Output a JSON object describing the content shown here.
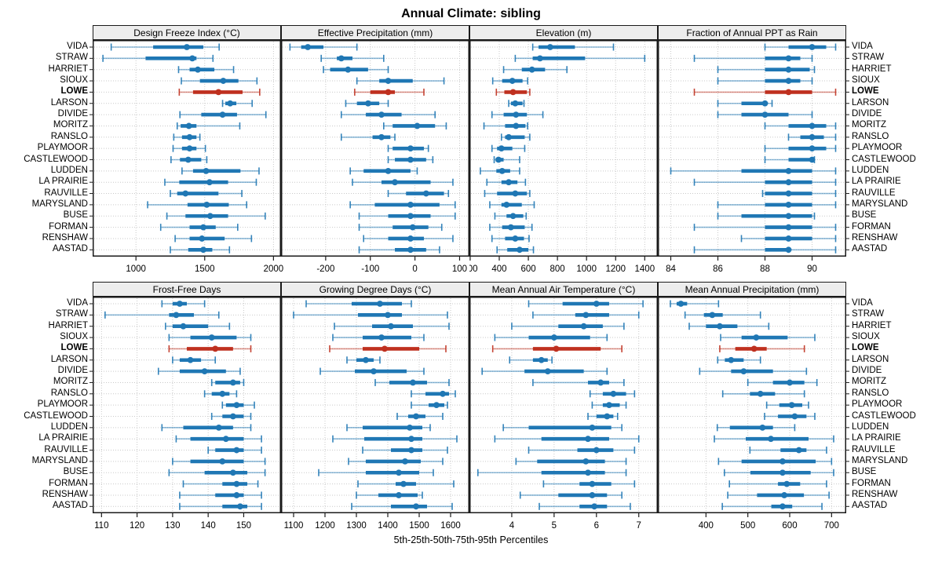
{
  "title": "Annual Climate: sibling",
  "footer": "5th-25th-50th-75th-95th Percentiles",
  "percentile_levels": [
    5,
    25,
    50,
    75,
    95
  ],
  "highlight_station": "LOWE",
  "colors": {
    "series": "#1f77b4",
    "highlight": "#bf301f",
    "grid": "#c9c9c9",
    "strip_bg": "#ededed",
    "border": "#1a1a1a"
  },
  "stations": [
    "VIDA",
    "STRAW",
    "HARRIET",
    "SIOUX",
    "LOWE",
    "LARSON",
    "DIVIDE",
    "MORITZ",
    "RANSLO",
    "PLAYMOOR",
    "CASTLEWOOD",
    "LUDDEN",
    "LA PRAIRIE",
    "RAUVILLE",
    "MARYSLAND",
    "BUSE",
    "FORMAN",
    "RENSHAW",
    "AASTAD"
  ],
  "chart_data": [
    {
      "type": "dotplot-percentiles",
      "title": "Design Freeze Index (°C)",
      "xlim": [
        685,
        2055
      ],
      "ticks": [
        1000,
        1500,
        2000
      ],
      "values": {
        "VIDA": [
          820,
          1125,
          1370,
          1490,
          1605
        ],
        "STRAW": [
          760,
          1070,
          1410,
          1440,
          1560
        ],
        "HARRIET": [
          1310,
          1390,
          1450,
          1570,
          1710
        ],
        "SIOUX": [
          1330,
          1465,
          1635,
          1745,
          1880
        ],
        "LOWE": [
          1315,
          1415,
          1600,
          1775,
          1900
        ],
        "LARSON": [
          1630,
          1650,
          1685,
          1730,
          1845
        ],
        "DIVIDE": [
          1320,
          1475,
          1630,
          1735,
          1945
        ],
        "MORITZ": [
          1300,
          1325,
          1385,
          1440,
          1755
        ],
        "RANSLO": [
          1275,
          1335,
          1390,
          1440,
          1465
        ],
        "PLAYMOOR": [
          1270,
          1335,
          1390,
          1440,
          1505
        ],
        "CASTLEWOOD": [
          1255,
          1320,
          1380,
          1475,
          1515
        ],
        "LUDDEN": [
          1335,
          1415,
          1510,
          1760,
          1895
        ],
        "LA PRAIRIE": [
          1210,
          1315,
          1535,
          1670,
          1875
        ],
        "RAUVILLE": [
          1250,
          1300,
          1360,
          1600,
          1770
        ],
        "MARYSLAND": [
          1085,
          1375,
          1515,
          1675,
          1805
        ],
        "BUSE": [
          1225,
          1360,
          1540,
          1670,
          1940
        ],
        "FORMAN": [
          1180,
          1390,
          1490,
          1580,
          1740
        ],
        "RENSHAW": [
          1285,
          1390,
          1480,
          1645,
          1840
        ],
        "AASTAD": [
          1250,
          1380,
          1490,
          1555,
          1680
        ]
      }
    },
    {
      "type": "dotplot-percentiles",
      "title": "Effective Precipitation (mm)",
      "xlim": [
        -300,
        122
      ],
      "ticks": [
        -200,
        -100,
        0,
        100
      ],
      "values": {
        "VIDA": [
          -280,
          -255,
          -240,
          -205,
          -130
        ],
        "STRAW": [
          -210,
          -175,
          -165,
          -140,
          -70
        ],
        "HARRIET": [
          -205,
          -190,
          -150,
          -105,
          -60
        ],
        "SIOUX": [
          -130,
          -80,
          -60,
          -5,
          65
        ],
        "LOWE": [
          -135,
          -100,
          -60,
          -45,
          20
        ],
        "LARSON": [
          -155,
          -130,
          -105,
          -80,
          -60
        ],
        "DIVIDE": [
          -165,
          -110,
          -75,
          -30,
          45
        ],
        "MORITZ": [
          -70,
          -50,
          5,
          45,
          70
        ],
        "RANSLO": [
          -165,
          -95,
          -75,
          -55,
          -45
        ],
        "PLAYMOOR": [
          -60,
          -50,
          -10,
          20,
          30
        ],
        "CASTLEWOOD": [
          -60,
          -45,
          -10,
          25,
          40
        ],
        "LUDDEN": [
          -145,
          -115,
          -60,
          -10,
          5
        ],
        "LA PRAIRIE": [
          -140,
          -75,
          -45,
          35,
          85
        ],
        "RAUVILLE": [
          -60,
          -20,
          25,
          65,
          75
        ],
        "MARYSLAND": [
          -145,
          -90,
          -10,
          55,
          90
        ],
        "BUSE": [
          -125,
          -60,
          -10,
          35,
          90
        ],
        "FORMAN": [
          -125,
          -50,
          -5,
          30,
          60
        ],
        "RENSHAW": [
          -115,
          -60,
          -10,
          20,
          85
        ],
        "AASTAD": [
          -125,
          -45,
          -10,
          25,
          55
        ]
      }
    },
    {
      "type": "dotplot-percentiles",
      "title": "Elevation (m)",
      "xlim": [
        195,
        1490
      ],
      "ticks": [
        200,
        400,
        600,
        800,
        1000,
        1200,
        1400
      ],
      "values": {
        "VIDA": [
          630,
          670,
          750,
          920,
          1185
        ],
        "STRAW": [
          510,
          630,
          680,
          990,
          1400
        ],
        "HARRIET": [
          430,
          555,
          625,
          715,
          865
        ],
        "SIOUX": [
          355,
          420,
          490,
          560,
          595
        ],
        "LOWE": [
          380,
          435,
          495,
          590,
          610
        ],
        "LARSON": [
          465,
          480,
          510,
          560,
          570
        ],
        "DIVIDE": [
          350,
          430,
          515,
          590,
          700
        ],
        "MORITZ": [
          295,
          440,
          515,
          580,
          595
        ],
        "RANSLO": [
          415,
          440,
          465,
          575,
          610
        ],
        "PLAYMOOR": [
          350,
          385,
          415,
          490,
          575
        ],
        "CASTLEWOOD": [
          365,
          375,
          395,
          430,
          540
        ],
        "LUDDEN": [
          270,
          380,
          420,
          475,
          540
        ],
        "LA PRAIRIE": [
          315,
          415,
          465,
          525,
          580
        ],
        "RAUVILLE": [
          300,
          385,
          510,
          590,
          610
        ],
        "MARYSLAND": [
          335,
          415,
          450,
          555,
          640
        ],
        "BUSE": [
          370,
          450,
          495,
          565,
          585
        ],
        "FORMAN": [
          335,
          420,
          480,
          575,
          625
        ],
        "RENSHAW": [
          350,
          440,
          510,
          570,
          605
        ],
        "AASTAD": [
          385,
          455,
          540,
          600,
          635
        ]
      }
    },
    {
      "type": "dotplot-percentiles",
      "title": "Fraction of Annual PPT as Rain",
      "xlim": [
        83.45,
        91.45
      ],
      "ticks": [
        84,
        86,
        88,
        90
      ],
      "values": {
        "VIDA": [
          88,
          89,
          90,
          90.6,
          91
        ],
        "STRAW": [
          85,
          88,
          89,
          89.5,
          90
        ],
        "HARRIET": [
          86,
          88,
          89,
          89.9,
          90.1
        ],
        "SIOUX": [
          86,
          88,
          89,
          89.5,
          90
        ],
        "LOWE": [
          85,
          88,
          89,
          90,
          91
        ],
        "LARSON": [
          86,
          87,
          88,
          88,
          88.3
        ],
        "DIVIDE": [
          86,
          87,
          88,
          89,
          90
        ],
        "MORITZ": [
          88,
          89,
          90,
          90.6,
          91
        ],
        "RANSLO": [
          89,
          89.5,
          90,
          90.5,
          91
        ],
        "PLAYMOOR": [
          88,
          89,
          90,
          90.6,
          91
        ],
        "CASTLEWOOD": [
          88,
          89,
          90,
          90,
          90.1
        ],
        "LUDDEN": [
          84,
          87,
          89,
          90,
          91
        ],
        "LA PRAIRIE": [
          85,
          88,
          89,
          90,
          91
        ],
        "RAUVILLE": [
          87.9,
          88,
          89,
          90,
          91
        ],
        "MARYSLAND": [
          86,
          88,
          89,
          90,
          91
        ],
        "BUSE": [
          86,
          87,
          89,
          90,
          90.1
        ],
        "FORMAN": [
          85,
          88,
          89,
          90,
          91
        ],
        "RENSHAW": [
          87,
          88,
          89,
          90,
          91
        ],
        "AASTAD": [
          85,
          88,
          89,
          89.1,
          91
        ]
      }
    },
    {
      "type": "dotplot-percentiles",
      "title": "Frost-Free Days",
      "xlim": [
        107.5,
        160.5
      ],
      "ticks": [
        110,
        120,
        130,
        140,
        150
      ],
      "values": {
        "VIDA": [
          127,
          130,
          132,
          134,
          139
        ],
        "STRAW": [
          111,
          129,
          131,
          136,
          143
        ],
        "HARRIET": [
          128,
          130,
          133,
          140,
          146
        ],
        "SIOUX": [
          129,
          135,
          141,
          148,
          152
        ],
        "LOWE": [
          129,
          134,
          142,
          147,
          152
        ],
        "LARSON": [
          130,
          132,
          135,
          138,
          142
        ],
        "DIVIDE": [
          126,
          132,
          139,
          145,
          149
        ],
        "MORITZ": [
          141,
          142,
          147,
          149,
          150
        ],
        "RANSLO": [
          139,
          141,
          144,
          146,
          148
        ],
        "PLAYMOOR": [
          144,
          145,
          148,
          150,
          153
        ],
        "CASTLEWOOD": [
          141,
          144,
          147,
          150,
          152
        ],
        "LUDDEN": [
          127,
          133,
          143,
          147,
          152
        ],
        "LA PRAIRIE": [
          131,
          135,
          145,
          150,
          155
        ],
        "RAUVILLE": [
          140,
          142,
          148,
          150,
          155
        ],
        "MARYSLAND": [
          130,
          135,
          144,
          150,
          156
        ],
        "BUSE": [
          129,
          139,
          147,
          151,
          156
        ],
        "FORMAN": [
          133,
          144,
          148,
          151,
          154
        ],
        "RENSHAW": [
          132,
          142,
          148,
          150,
          155
        ],
        "AASTAD": [
          132,
          144,
          149,
          151,
          155
        ]
      }
    },
    {
      "type": "dotplot-percentiles",
      "title": "Growing Degree Days (°C)",
      "xlim": [
        1060,
        1660
      ],
      "ticks": [
        1100,
        1200,
        1300,
        1400,
        1500,
        1600
      ],
      "values": {
        "VIDA": [
          1140,
          1285,
          1375,
          1445,
          1475
        ],
        "STRAW": [
          1100,
          1305,
          1400,
          1445,
          1590
        ],
        "HARRIET": [
          1230,
          1350,
          1410,
          1480,
          1595
        ],
        "SIOUX": [
          1225,
          1320,
          1380,
          1475,
          1515
        ],
        "LOWE": [
          1215,
          1320,
          1390,
          1500,
          1585
        ],
        "LARSON": [
          1270,
          1300,
          1330,
          1355,
          1375
        ],
        "DIVIDE": [
          1185,
          1295,
          1355,
          1460,
          1515
        ],
        "MORITZ": [
          1360,
          1405,
          1480,
          1525,
          1595
        ],
        "RANSLO": [
          1475,
          1520,
          1575,
          1595,
          1615
        ],
        "PLAYMOOR": [
          1475,
          1530,
          1555,
          1580,
          1590
        ],
        "CASTLEWOOD": [
          1430,
          1465,
          1490,
          1520,
          1575
        ],
        "LUDDEN": [
          1270,
          1320,
          1470,
          1510,
          1535
        ],
        "LA PRAIRIE": [
          1225,
          1325,
          1475,
          1510,
          1620
        ],
        "RAUVILLE": [
          1320,
          1410,
          1475,
          1510,
          1590
        ],
        "MARYSLAND": [
          1275,
          1330,
          1455,
          1505,
          1575
        ],
        "BUSE": [
          1180,
          1330,
          1435,
          1500,
          1545
        ],
        "FORMAN": [
          1305,
          1425,
          1450,
          1490,
          1610
        ],
        "RENSHAW": [
          1300,
          1370,
          1435,
          1495,
          1510
        ],
        "AASTAD": [
          1285,
          1410,
          1490,
          1525,
          1605
        ]
      }
    },
    {
      "type": "dotplot-percentiles",
      "title": "Mean Annual Air Temperature (°C)",
      "xlim": [
        3.0,
        7.45
      ],
      "ticks": [
        4,
        5,
        6,
        7
      ],
      "values": {
        "VIDA": [
          4.4,
          5.2,
          6.0,
          6.3,
          7.1
        ],
        "STRAW": [
          4.5,
          5.5,
          5.75,
          6.3,
          7.0
        ],
        "HARRIET": [
          4.0,
          5.1,
          5.7,
          6.15,
          6.65
        ],
        "SIOUX": [
          3.6,
          4.4,
          5.0,
          5.85,
          6.25
        ],
        "LOWE": [
          3.55,
          4.5,
          5.05,
          6.1,
          6.6
        ],
        "LARSON": [
          3.95,
          4.5,
          4.7,
          4.85,
          4.95
        ],
        "DIVIDE": [
          3.3,
          4.3,
          4.85,
          5.7,
          6.25
        ],
        "MORITZ": [
          4.5,
          5.8,
          6.1,
          6.3,
          6.65
        ],
        "RANSLO": [
          5.85,
          6.15,
          6.4,
          6.7,
          6.9
        ],
        "PLAYMOOR": [
          5.9,
          6.15,
          6.3,
          6.55,
          6.7
        ],
        "CASTLEWOOD": [
          5.8,
          6.0,
          6.25,
          6.4,
          6.5
        ],
        "LUDDEN": [
          3.8,
          4.4,
          5.9,
          6.35,
          6.6
        ],
        "LA PRAIRIE": [
          3.6,
          4.7,
          5.8,
          6.3,
          7.0
        ],
        "RAUVILLE": [
          4.4,
          5.55,
          6.0,
          6.4,
          6.9
        ],
        "MARYSLAND": [
          4.1,
          4.6,
          5.75,
          6.2,
          6.7
        ],
        "BUSE": [
          3.2,
          4.7,
          5.8,
          6.2,
          6.7
        ],
        "FORMAN": [
          4.75,
          5.6,
          5.9,
          6.35,
          6.9
        ],
        "RENSHAW": [
          4.2,
          5.1,
          5.9,
          6.25,
          6.6
        ],
        "AASTAD": [
          4.65,
          5.6,
          5.95,
          6.25,
          6.8
        ]
      }
    },
    {
      "type": "dotplot-percentiles",
      "title": "Mean Annual Precipitation (mm)",
      "xlim": [
        285,
        735
      ],
      "ticks": [
        400,
        500,
        600,
        700
      ],
      "values": {
        "VIDA": [
          315,
          330,
          340,
          355,
          430
        ],
        "STRAW": [
          350,
          395,
          415,
          440,
          530
        ],
        "HARRIET": [
          360,
          400,
          433,
          475,
          550
        ],
        "SIOUX": [
          435,
          485,
          520,
          595,
          660
        ],
        "LOWE": [
          433,
          470,
          515,
          545,
          635
        ],
        "LARSON": [
          428,
          445,
          460,
          490,
          530
        ],
        "DIVIDE": [
          385,
          460,
          490,
          560,
          640
        ],
        "MORITZ": [
          500,
          560,
          600,
          635,
          665
        ],
        "RANSLO": [
          440,
          505,
          530,
          565,
          635
        ],
        "PLAYMOOR": [
          545,
          575,
          605,
          630,
          645
        ],
        "CASTLEWOOD": [
          540,
          572,
          612,
          640,
          660
        ],
        "LUDDEN": [
          427,
          457,
          535,
          560,
          612
        ],
        "LA PRAIRIE": [
          420,
          495,
          555,
          645,
          705
        ],
        "RAUVILLE": [
          505,
          578,
          622,
          640,
          688
        ],
        "MARYSLAND": [
          430,
          485,
          583,
          662,
          700
        ],
        "BUSE": [
          444,
          506,
          583,
          650,
          705
        ],
        "FORMAN": [
          456,
          572,
          593,
          625,
          688
        ],
        "RENSHAW": [
          452,
          522,
          587,
          634,
          694
        ],
        "AASTAD": [
          439,
          556,
          583,
          606,
          677
        ]
      }
    }
  ]
}
